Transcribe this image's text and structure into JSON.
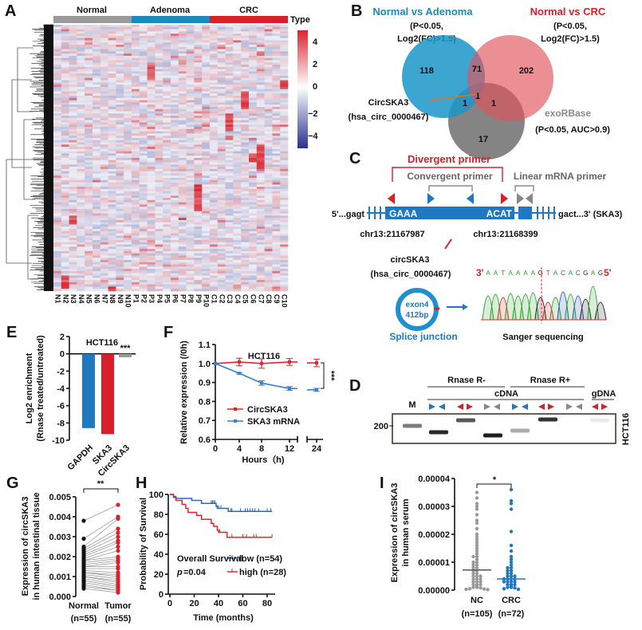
{
  "panels": {
    "A": {
      "label": "A",
      "groups": [
        "Normal",
        "Adenoma",
        "CRC"
      ],
      "group_colors": [
        "#9a9a9a",
        "#1a8bbf",
        "#d7202a"
      ],
      "type_label": "Type",
      "colorbar_ticks": [
        "4",
        "2",
        "0",
        "−2",
        "−4"
      ]
    },
    "B": {
      "label": "B",
      "set1": {
        "title": "Normal vs Adenoma",
        "line2": "(P<0.05,",
        "line3": "Log2(FC)>1.5)",
        "color": "#1a8bbf"
      },
      "set2": {
        "title": "Normal vs CRC",
        "line2": "(P<0.05,",
        "line3": "Log2(FC)>1.5)",
        "color": "#d7202a"
      },
      "set3": {
        "title": "exoRBase",
        "line2": "(P<0.05, AUC>0.9)",
        "color": "#888888"
      },
      "counts": {
        "only1": "118",
        "s12": "71",
        "only2": "202",
        "s13": "1",
        "s23": "1",
        "only3": "17",
        "center": "1"
      },
      "callout": {
        "line1": "CircSKA3",
        "line2": "(hsa_circ_0000467)"
      }
    },
    "C": {
      "label": "C",
      "divergent": "Divergent primer",
      "convergent": "Convergent primer",
      "linear": "Linear mRNA primer",
      "left_seq": "5'...gagt",
      "exon_start": "GAAA",
      "exon_end": "ACAT",
      "right_seq": "gact...3' (SKA3)",
      "coord1": "chr13:21167987",
      "coord2": "chr13:21168399",
      "circ_name": "circSKA3",
      "circ_id": "(hsa_circ_0000467)",
      "circle_l1": "exon4",
      "circle_l2": "412bp",
      "seq_3": "3'",
      "seq": "AATAAAAGTACACGAG",
      "seq_5": "5'",
      "splice": "Splice junction",
      "sanger": "Sanger sequencing"
    },
    "D": {
      "label": "D",
      "rnase_minus": "Rnase R-",
      "rnase_plus": "Rnase R+",
      "cdna": "cDNA",
      "gdna": "gDNA",
      "marker": "M",
      "size": "200",
      "cell": "HCT116"
    },
    "E": {
      "label": "E"
    },
    "F": {
      "label": "F"
    },
    "G": {
      "label": "G"
    },
    "H": {
      "label": "H"
    },
    "I": {
      "label": "I"
    }
  },
  "chart_data": [
    {
      "id": "A",
      "type": "heatmap",
      "columns": [
        "N1",
        "N2",
        "N3",
        "N4",
        "N5",
        "N6",
        "N7",
        "N8",
        "N9",
        "N10",
        "P1",
        "P2",
        "P3",
        "P4",
        "P5",
        "P6",
        "P7",
        "P8",
        "P9",
        "P10",
        "C1",
        "C2",
        "C3",
        "C4",
        "C5",
        "C6",
        "C7",
        "C8",
        "C9",
        "C10"
      ],
      "column_groups": [
        "Normal",
        "Adenoma",
        "CRC"
      ],
      "color_range": [
        -4,
        4
      ],
      "colors": {
        "low": "#2b2f8f",
        "mid": "#ffffff",
        "high": "#d7262e"
      }
    },
    {
      "id": "E",
      "type": "bar",
      "title": "HCT116",
      "ylabel_line1": "Log2 enrichment",
      "ylabel_line2": "(Rnase treated/untreated)",
      "categories": [
        "GAPDH",
        "SKA3",
        "CircSKA3"
      ],
      "values": [
        -8.6,
        -9.3,
        -0.4
      ],
      "colors": [
        "#1f78c1",
        "#d7202a",
        "#999999"
      ],
      "ylim": [
        -10,
        2
      ],
      "yticks": [
        "2",
        "0",
        "-2",
        "-4",
        "-6",
        "-8",
        "-10"
      ],
      "annotation": "***"
    },
    {
      "id": "F",
      "type": "line",
      "title": "HCT116",
      "xlabel": "Hours（h)",
      "ylabel": "Relative expression (/0h)",
      "x": [
        0,
        4,
        8,
        12,
        24
      ],
      "xticks": [
        "0",
        "4",
        "8",
        "12",
        "24"
      ],
      "ylim": [
        0.6,
        1.1
      ],
      "yticks": [
        "1.1",
        "1.0",
        "0.9",
        "0.8",
        "0.7",
        "0.6"
      ],
      "series": [
        {
          "name": "CircSKA3",
          "color": "#e0262e",
          "values": [
            1.0,
            1.008,
            1.0,
            1.008,
            1.003
          ],
          "err": [
            0,
            0.02,
            0.025,
            0.018,
            0.02
          ]
        },
        {
          "name": "SKA3 mRNA",
          "color": "#3a7fd0",
          "values": [
            1.0,
            0.948,
            0.897,
            0.868,
            0.861
          ],
          "err": [
            0,
            0.004,
            0.012,
            0.01,
            0.008
          ]
        }
      ],
      "annotation": "***",
      "legend": "bottom-left"
    },
    {
      "id": "G",
      "type": "scatter",
      "ylabel_line1": "Expression of circSKA3",
      "ylabel_line2": "in human intestinal tissue",
      "categories": [
        "Normal",
        "Tumor"
      ],
      "category_n": [
        "(n=55)",
        "(n=55)"
      ],
      "ylim": [
        0,
        0.005
      ],
      "yticks": [
        "0.005",
        "0.004",
        "0.003",
        "0.002",
        "0.001",
        "0.000"
      ],
      "annotation": "**",
      "pairs_normal": [
        0.0038,
        0.0029,
        0.0025,
        0.0024,
        0.0023,
        0.0022,
        0.0021,
        0.002,
        0.0019,
        0.0018,
        0.0018,
        0.0017,
        0.0016,
        0.0015,
        0.0015,
        0.0014,
        0.0013,
        0.0012,
        0.0012,
        0.0011,
        0.001,
        0.001,
        0.0009,
        0.0008,
        0.0008,
        0.0007,
        0.0006,
        0.0005,
        0.0004
      ],
      "pairs_tumor": [
        0.0046,
        0.004,
        0.0039,
        0.0034,
        0.0032,
        0.003,
        0.0028,
        0.0027,
        0.0025,
        0.0023,
        0.002,
        0.0019,
        0.0018,
        0.0017,
        0.0015,
        0.0014,
        0.0012,
        0.0011,
        0.001,
        0.0009,
        0.0008,
        0.0007,
        0.0006,
        0.0005,
        0.0005,
        0.0004,
        0.0003,
        0.0003,
        0.0002
      ],
      "colors": {
        "normal": "#111111",
        "tumor": "#d7202a",
        "lines": "#9a9a9a"
      }
    },
    {
      "id": "H",
      "type": "line",
      "xlabel": "Time (months)",
      "ylabel": "Probability of Survival",
      "xlim": [
        0,
        85
      ],
      "ylim": [
        0,
        100
      ],
      "xticks": [
        "0",
        "20",
        "40",
        "60",
        "80"
      ],
      "yticks": [
        "100",
        "80",
        "60",
        "40",
        "20",
        "0"
      ],
      "title_inset": "Overall Survival",
      "p_label": "p",
      "p_value": "=0.04",
      "series": [
        {
          "name": "low (n=54)",
          "color": "#1f6fc4",
          "steps": [
            [
              0,
              100
            ],
            [
              3,
              98
            ],
            [
              5,
              96
            ],
            [
              18,
              94
            ],
            [
              26,
              91
            ],
            [
              38,
              88
            ],
            [
              39,
              86
            ],
            [
              48,
              83
            ],
            [
              84,
              83
            ]
          ],
          "censored": [
            34,
            35,
            36,
            37,
            39,
            40,
            42,
            50,
            51,
            58,
            62,
            64,
            66,
            68,
            70,
            73,
            80,
            83
          ]
        },
        {
          "name": "high (n=28)",
          "color": "#e0262e",
          "steps": [
            [
              0,
              100
            ],
            [
              3,
              97
            ],
            [
              5,
              94
            ],
            [
              10,
              90
            ],
            [
              13,
              86
            ],
            [
              15,
              82
            ],
            [
              22,
              79
            ],
            [
              26,
              75
            ],
            [
              34,
              71
            ],
            [
              36,
              68
            ],
            [
              39,
              64
            ],
            [
              40,
              62
            ],
            [
              47,
              57
            ],
            [
              84,
              57
            ]
          ],
          "censored": [
            41,
            51,
            60,
            63,
            69,
            71,
            84
          ]
        }
      ],
      "legend": "bottom-right"
    },
    {
      "id": "I",
      "type": "scatter",
      "ylabel_line1": "Expression of circSKA3",
      "ylabel_line2": "in human serum",
      "categories": [
        "NC",
        "CRC"
      ],
      "category_n": [
        "(n=105)",
        "(n=72)"
      ],
      "ylim": [
        0,
        4e-05
      ],
      "yticks": [
        "0.00004",
        "0.00003",
        "0.00002",
        "0.00001",
        "0.00000"
      ],
      "annotation": "*",
      "medians": [
        7.2e-06,
        4e-06
      ],
      "NC": [
        3.5e-05,
        3.3e-05,
        3.1e-05,
        3e-05,
        2.9e-05,
        2.7e-05,
        2.5e-05,
        2.4e-05,
        2.2e-05,
        2e-05,
        1.9e-05,
        1.8e-05,
        1.7e-05,
        1.6e-05,
        1.5e-05,
        1.4e-05,
        1.3e-05,
        1.2e-05,
        1.2e-05,
        1.1e-05,
        1e-05,
        1e-05,
        9e-06,
        9e-06,
        8e-06,
        8e-06,
        7e-06,
        7e-06,
        6e-06,
        6e-06,
        5e-06,
        5e-06,
        5e-06,
        4e-06,
        4e-06,
        4e-06,
        3e-06,
        3e-06,
        3e-06,
        2e-06,
        2e-06,
        2e-06,
        1.5e-06,
        1e-06,
        1e-06,
        8e-07,
        5e-07,
        4e-07,
        3e-07,
        2e-07
      ],
      "CRC": [
        3.6e-05,
        3.2e-05,
        3.1e-05,
        2.9e-05,
        2.1e-05,
        1.6e-05,
        1.4e-05,
        1.2e-05,
        1.1e-05,
        1e-05,
        9e-06,
        8e-06,
        8e-06,
        7e-06,
        7e-06,
        6e-06,
        6e-06,
        5e-06,
        5e-06,
        5e-06,
        4e-06,
        4e-06,
        4e-06,
        4e-06,
        3e-06,
        3e-06,
        3e-06,
        3e-06,
        2e-06,
        2e-06,
        2e-06,
        1.5e-06,
        1e-06,
        1e-06,
        8e-07,
        5e-07,
        3e-07
      ],
      "colors": {
        "NC": "#999999",
        "CRC": "#1f78c1"
      }
    }
  ]
}
